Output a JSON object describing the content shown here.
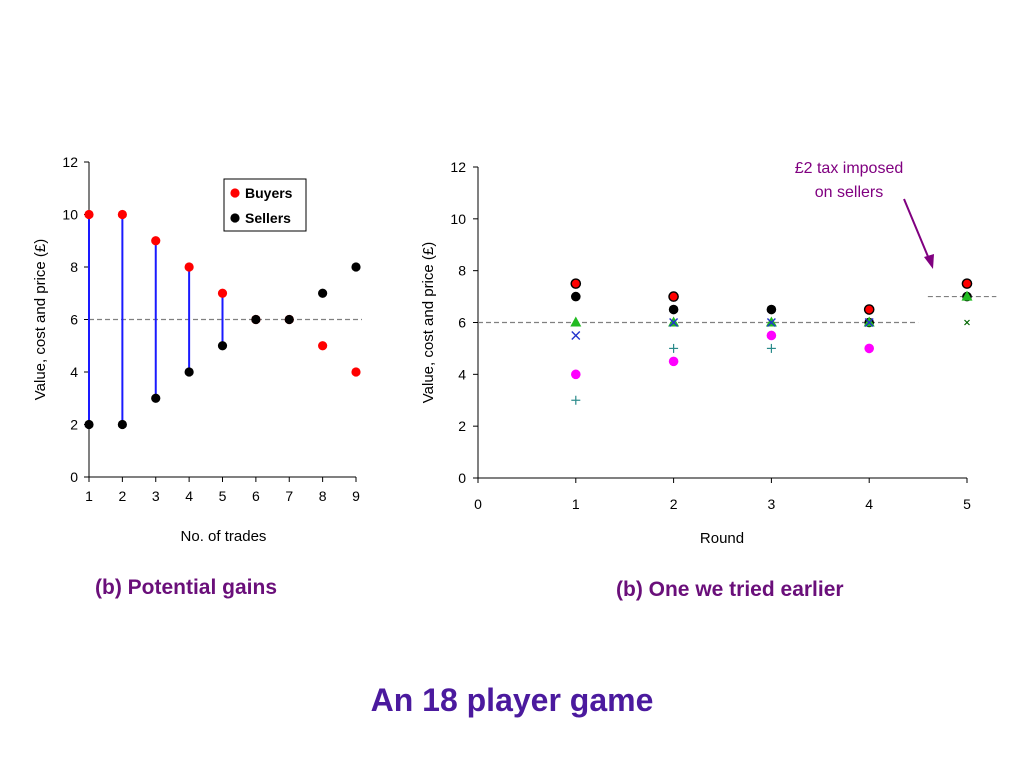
{
  "slide_title": "An 18 player game",
  "captions": {
    "left": "(b) Potential gains",
    "right": "(b) One we tried earlier"
  },
  "colors": {
    "buyers": "#ff0000",
    "sellers": "#000000",
    "connector": "#1a1aff",
    "caption": "#6a0f7a",
    "title": "#4b1a9e",
    "annotation": "#800080",
    "reference_line": "#808080"
  },
  "chart_data": [
    {
      "type": "scatter",
      "title": "",
      "xlabel": "No. of trades",
      "ylabel": "Value, cost and price (£)",
      "xlim": [
        1,
        9
      ],
      "ylim": [
        0,
        12
      ],
      "x_ticks": [
        "1",
        "2",
        "3",
        "4",
        "5",
        "6",
        "7",
        "8",
        "9"
      ],
      "y_ticks": [
        "0",
        "2",
        "4",
        "6",
        "8",
        "10",
        "12"
      ],
      "grid": false,
      "legend": "top-right",
      "reference_line": {
        "y": 6,
        "style": "dashed"
      },
      "series": [
        {
          "name": "Buyers",
          "color": "#ff0000",
          "x": [
            1,
            2,
            3,
            4,
            5,
            6,
            7,
            8,
            9
          ],
          "y": [
            10,
            10,
            9,
            8,
            7,
            6,
            6,
            5,
            4
          ]
        },
        {
          "name": "Sellers",
          "color": "#000000",
          "x": [
            1,
            2,
            3,
            4,
            5,
            6,
            7,
            8,
            9
          ],
          "y": [
            2,
            2,
            3,
            4,
            5,
            6,
            6,
            7,
            8
          ]
        }
      ],
      "connectors": {
        "x": [
          1,
          2,
          3,
          4,
          5
        ],
        "from": [
          2,
          2,
          3,
          4,
          5
        ],
        "to": [
          10,
          10,
          9,
          8,
          7
        ],
        "color": "#1a1aff"
      }
    },
    {
      "type": "scatter",
      "title": "",
      "xlabel": "Round",
      "ylabel": "Value, cost and price (£)",
      "xlim": [
        0,
        5
      ],
      "ylim": [
        0,
        12
      ],
      "x_ticks": [
        "0",
        "1",
        "2",
        "3",
        "4",
        "5"
      ],
      "y_ticks": [
        "0",
        "2",
        "4",
        "6",
        "8",
        "10",
        "12"
      ],
      "grid": false,
      "legend": "none",
      "reference_lines": [
        {
          "y": 6,
          "x_from": 0,
          "x_to": 4.5,
          "style": "dashed"
        },
        {
          "y": 7,
          "x_from": 4.6,
          "x_to": 5.3,
          "style": "dashed"
        }
      ],
      "annotation": {
        "lines": [
          "£2 tax imposed",
          "on sellers"
        ],
        "color": "#800080"
      },
      "series": [
        {
          "marker": "circle-outlined",
          "color": "#ff0000",
          "x": [
            1,
            2,
            4,
            5
          ],
          "y": [
            7.5,
            7,
            6.5,
            7.5
          ]
        },
        {
          "marker": "circle",
          "color": "#000000",
          "x": [
            1,
            2,
            3,
            4,
            5
          ],
          "y": [
            7,
            6.5,
            6.5,
            6,
            7
          ]
        },
        {
          "marker": "triangle",
          "color": "#22bb22",
          "x": [
            1,
            2,
            3,
            4,
            5
          ],
          "y": [
            6,
            6,
            6,
            6,
            7
          ]
        },
        {
          "marker": "cross",
          "color": "#2233cc",
          "x": [
            1,
            2,
            3,
            4
          ],
          "y": [
            5.5,
            6,
            6,
            6
          ]
        },
        {
          "marker": "circle",
          "color": "#ff00ff",
          "x": [
            1,
            2,
            3,
            4
          ],
          "y": [
            4,
            4.5,
            5.5,
            5
          ]
        },
        {
          "marker": "plus",
          "color": "#2a8a8a",
          "x": [
            1,
            2,
            3
          ],
          "y": [
            3,
            5,
            5
          ]
        },
        {
          "marker": "small-x",
          "color": "#006600",
          "x": [
            5
          ],
          "y": [
            6
          ]
        }
      ]
    }
  ]
}
